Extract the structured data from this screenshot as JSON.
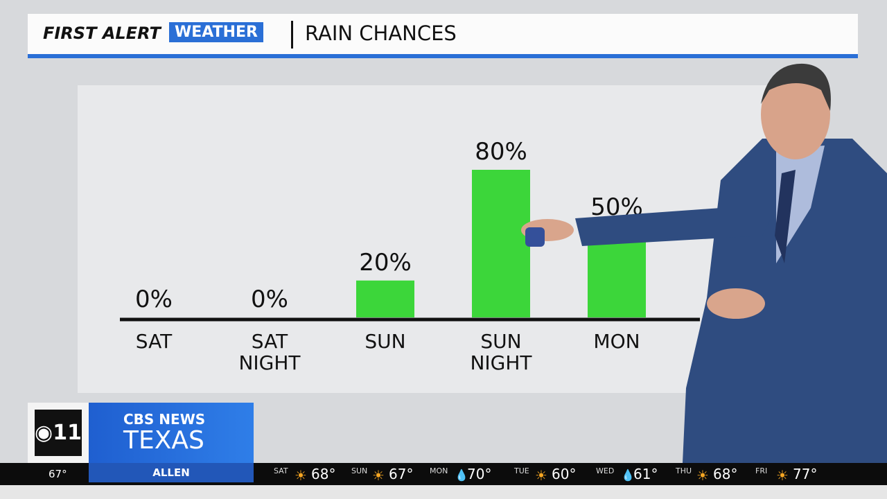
{
  "header": {
    "brand_first": "FIRST ALERT",
    "brand_weather": "WEATHER",
    "title": "RAIN CHANCES"
  },
  "chart_data": {
    "type": "bar",
    "categories": [
      "SAT",
      "SAT NIGHT",
      "SUN",
      "SUN NIGHT",
      "MON"
    ],
    "values": [
      0,
      0,
      20,
      80,
      50
    ],
    "value_labels": [
      "0%",
      "0%",
      "20%",
      "80%",
      "50%"
    ],
    "color": "#3cd63a"
  },
  "logo": {
    "network": "CBS NEWS",
    "region": "TEXAS"
  },
  "ticker": {
    "current_temp": "67°",
    "location": "ALLEN",
    "forecast": [
      {
        "day": "SAT",
        "temp": "68°"
      },
      {
        "day": "SUN",
        "temp": "67°"
      },
      {
        "day": "MON",
        "temp": "70°"
      },
      {
        "day": "TUE",
        "temp": "60°"
      },
      {
        "day": "WED",
        "temp": "61°"
      },
      {
        "day": "THU",
        "temp": "68°"
      },
      {
        "day": "FRI",
        "temp": "77°"
      }
    ]
  }
}
